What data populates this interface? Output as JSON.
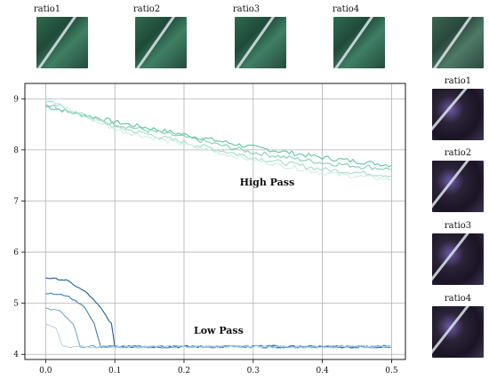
{
  "top_thumbnails": [
    {
      "label": "ratio1"
    },
    {
      "label": "ratio2"
    },
    {
      "label": "ratio3"
    },
    {
      "label": "ratio4"
    },
    {
      "label": ""
    }
  ],
  "side_thumbnails": [
    {
      "label": "ratio1"
    },
    {
      "label": "ratio2"
    },
    {
      "label": "ratio3"
    },
    {
      "label": "ratio4"
    }
  ],
  "chart_data": {
    "type": "line",
    "title": "",
    "xlabel": "",
    "ylabel": "",
    "xlim": [
      -0.03,
      0.52
    ],
    "ylim": [
      3.9,
      9.3
    ],
    "xticks": [
      "0.0",
      "0.1",
      "0.2",
      "0.3",
      "0.4",
      "0.5"
    ],
    "yticks": [
      "4",
      "5",
      "6",
      "7",
      "8",
      "9"
    ],
    "grid": true,
    "annotations": [
      {
        "text": "High Pass",
        "x": 0.32,
        "y": 7.3
      },
      {
        "text": "Low Pass",
        "x": 0.25,
        "y": 4.4
      }
    ],
    "series": [
      {
        "group": "High Pass",
        "color": "#63c3a3",
        "points": [
          [
            0.0,
            8.85
          ],
          [
            0.1,
            8.55
          ],
          [
            0.2,
            8.3
          ],
          [
            0.3,
            8.05
          ],
          [
            0.4,
            7.85
          ],
          [
            0.5,
            7.7
          ]
        ]
      },
      {
        "group": "High Pass",
        "color": "#7fcfb2",
        "points": [
          [
            0.0,
            8.9
          ],
          [
            0.1,
            8.5
          ],
          [
            0.2,
            8.25
          ],
          [
            0.3,
            7.95
          ],
          [
            0.4,
            7.75
          ],
          [
            0.5,
            7.62
          ]
        ]
      },
      {
        "group": "High Pass",
        "color": "#a6dcc8",
        "points": [
          [
            0.0,
            8.95
          ],
          [
            0.1,
            8.45
          ],
          [
            0.2,
            8.15
          ],
          [
            0.3,
            7.85
          ],
          [
            0.4,
            7.62
          ],
          [
            0.5,
            7.5
          ]
        ]
      },
      {
        "group": "High Pass",
        "color": "#cdeee1",
        "points": [
          [
            0.0,
            9.0
          ],
          [
            0.1,
            8.4
          ],
          [
            0.2,
            8.1
          ],
          [
            0.3,
            7.8
          ],
          [
            0.4,
            7.55
          ],
          [
            0.5,
            7.42
          ]
        ]
      },
      {
        "group": "Low Pass",
        "color": "#1f5f95",
        "points": [
          [
            0.0,
            5.5
          ],
          [
            0.03,
            5.45
          ],
          [
            0.06,
            5.2
          ],
          [
            0.08,
            4.9
          ],
          [
            0.095,
            4.6
          ],
          [
            0.1,
            4.15
          ],
          [
            0.2,
            4.15
          ],
          [
            0.3,
            4.15
          ],
          [
            0.4,
            4.15
          ],
          [
            0.5,
            4.15
          ]
        ]
      },
      {
        "group": "Low Pass",
        "color": "#3f7fb0",
        "points": [
          [
            0.0,
            5.2
          ],
          [
            0.03,
            5.15
          ],
          [
            0.055,
            4.95
          ],
          [
            0.07,
            4.6
          ],
          [
            0.08,
            4.15
          ],
          [
            0.2,
            4.15
          ],
          [
            0.3,
            4.15
          ],
          [
            0.4,
            4.15
          ],
          [
            0.5,
            4.15
          ]
        ]
      },
      {
        "group": "Low Pass",
        "color": "#79a9cc",
        "points": [
          [
            0.0,
            4.9
          ],
          [
            0.02,
            4.85
          ],
          [
            0.04,
            4.6
          ],
          [
            0.05,
            4.15
          ],
          [
            0.2,
            4.15
          ],
          [
            0.3,
            4.15
          ],
          [
            0.4,
            4.15
          ],
          [
            0.5,
            4.15
          ]
        ]
      },
      {
        "group": "Low Pass",
        "color": "#b5d2e6",
        "points": [
          [
            0.0,
            4.6
          ],
          [
            0.015,
            4.5
          ],
          [
            0.025,
            4.15
          ],
          [
            0.2,
            4.15
          ],
          [
            0.3,
            4.15
          ],
          [
            0.4,
            4.15
          ],
          [
            0.5,
            4.15
          ]
        ]
      }
    ]
  }
}
